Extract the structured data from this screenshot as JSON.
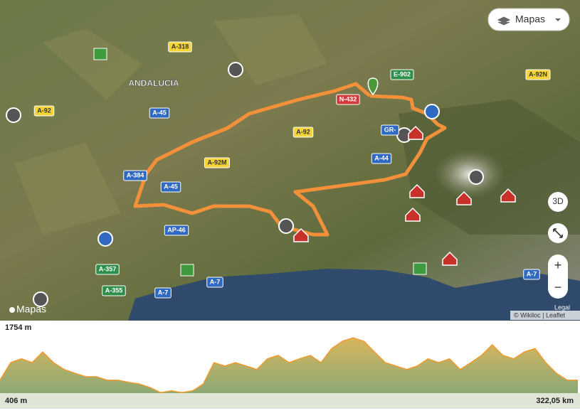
{
  "layer_button": "Mapas",
  "region_label": "ANDALUCÍA",
  "roads": [
    "A-318",
    "A-92",
    "A-45",
    "N-432",
    "E-902",
    "A-92N",
    "GR-",
    "A-92",
    "A-44",
    "A-92M",
    "A-384",
    "A-45",
    "AP-46",
    "A-357",
    "A-355",
    "A-7",
    "A-7",
    "A-7"
  ],
  "controls": {
    "three_d": "3D",
    "zoom_in": "+",
    "zoom_out": "−"
  },
  "legal": "Legal",
  "attribution": "© Wikiloc | Leaflet",
  "logo": "Mapas",
  "profile": {
    "y_max": {
      "value": 1754,
      "label": "1754 m"
    },
    "y_min": {
      "value": 406,
      "label": "406 m"
    },
    "distance": {
      "value": 322.05,
      "label": "322,05 km"
    },
    "elevations": [
      710,
      1120,
      1210,
      1120,
      1370,
      1120,
      960,
      870,
      790,
      790,
      710,
      710,
      660,
      620,
      540,
      420,
      460,
      420,
      460,
      620,
      1120,
      1040,
      1120,
      1040,
      960,
      1210,
      1290,
      1120,
      1210,
      1290,
      1120,
      1450,
      1620,
      1700,
      1620,
      1370,
      1120,
      1040,
      960,
      1040,
      1210,
      1120,
      1210,
      960,
      1120,
      1290,
      1540,
      1290,
      1210,
      1370,
      1450,
      1120,
      870,
      710,
      710
    ]
  }
}
